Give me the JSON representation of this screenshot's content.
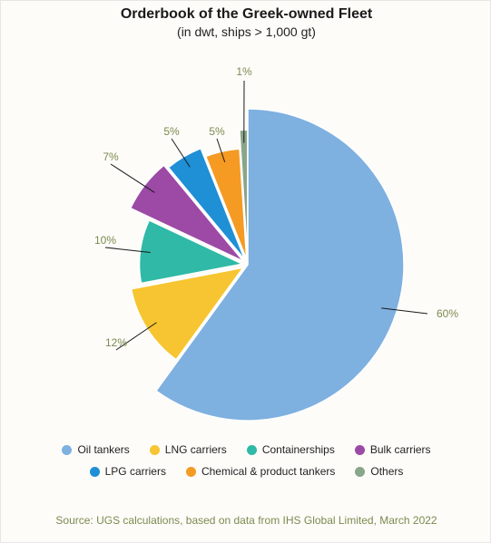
{
  "chart_data": {
    "type": "pie",
    "title": "Orderbook of the Greek-owned Fleet",
    "subtitle": "(in dwt, ships > 1,000 gt)",
    "slices": [
      {
        "name": "Oil tankers",
        "value": 60,
        "label": "60%",
        "color": "#7eb0e0",
        "exploded": false
      },
      {
        "name": "LNG carriers",
        "value": 12,
        "label": "12%",
        "color": "#f7c531",
        "exploded": true
      },
      {
        "name": "Containerships",
        "value": 10,
        "label": "10%",
        "color": "#2fb9a6",
        "exploded": true
      },
      {
        "name": "Bulk carriers",
        "value": 7,
        "label": "7%",
        "color": "#9c4aa6",
        "exploded": true
      },
      {
        "name": "LPG carriers",
        "value": 5,
        "label": "5%",
        "color": "#1f8fd6",
        "exploded": true
      },
      {
        "name": "Chemical & product tankers",
        "value": 5,
        "label": "5%",
        "color": "#f59a23",
        "exploded": true
      },
      {
        "name": "Others",
        "value": 1,
        "label": "1%",
        "color": "#8aa58a",
        "exploded": true
      }
    ],
    "legend_placement": "bottom"
  },
  "legend": {
    "row1": [
      "Oil tankers",
      "LNG carriers",
      "Containerships",
      "Bulk carriers"
    ],
    "row2": [
      "LPG carriers",
      "Chemical & product tankers",
      "Others"
    ]
  },
  "source": "Source: UGS calculations, based on data from IHS Global Limited, March 2022",
  "colors": {
    "label_text": "#7c8a4e",
    "leader_line": "#1a1a1a"
  }
}
